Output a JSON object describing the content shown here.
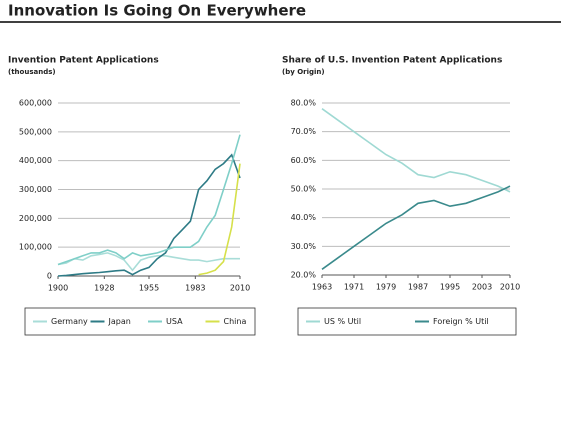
{
  "title": "Innovation Is Going On Everywhere",
  "chart_data": [
    {
      "type": "line",
      "title": "Invention Patent Applications",
      "subtitle": "(thousands)",
      "x": [
        1900,
        1905,
        1910,
        1915,
        1920,
        1925,
        1930,
        1935,
        1940,
        1945,
        1950,
        1955,
        1960,
        1965,
        1970,
        1975,
        1980,
        1985,
        1990,
        1995,
        2000,
        2005,
        2010
      ],
      "series": [
        {
          "name": "Germany",
          "color": "#a9ddd8",
          "values": [
            40000,
            45000,
            60000,
            55000,
            70000,
            75000,
            80000,
            70000,
            55000,
            20000,
            55000,
            65000,
            70000,
            70000,
            65000,
            60000,
            55000,
            55000,
            50000,
            55000,
            60000,
            60000,
            60000
          ]
        },
        {
          "name": "Japan",
          "color": "#2e7b86",
          "values": [
            0,
            2000,
            5000,
            8000,
            10000,
            12000,
            15000,
            18000,
            20000,
            5000,
            20000,
            30000,
            60000,
            80000,
            130000,
            160000,
            190000,
            300000,
            330000,
            370000,
            390000,
            420000,
            340000
          ]
        },
        {
          "name": "USA",
          "color": "#7fcfc8",
          "values": [
            40000,
            50000,
            60000,
            70000,
            80000,
            80000,
            90000,
            80000,
            60000,
            80000,
            70000,
            75000,
            80000,
            90000,
            100000,
            100000,
            100000,
            120000,
            170000,
            210000,
            300000,
            390000,
            490000
          ]
        },
        {
          "name": "China",
          "color": "#d6e04a",
          "values": [
            null,
            null,
            null,
            null,
            null,
            null,
            null,
            null,
            null,
            null,
            null,
            null,
            null,
            null,
            null,
            null,
            null,
            5000,
            10000,
            20000,
            50000,
            170000,
            390000
          ]
        }
      ],
      "xlim": [
        1900,
        2010
      ],
      "xticks": [
        1900,
        1928,
        1955,
        1983,
        2010
      ],
      "ylim": [
        0,
        600000
      ],
      "yticks": [
        0,
        {
          "value": 100000,
          "label": "100,000"
        },
        {
          "value": 200000,
          "label": "200,000"
        },
        {
          "value": 300000,
          "label": "300,000"
        },
        {
          "value": 400000,
          "label": "400,000"
        },
        {
          "value": 500000,
          "label": "500,000"
        },
        {
          "value": 600000,
          "label": "600,000"
        }
      ],
      "grid": true,
      "legend": "bottom"
    },
    {
      "type": "line",
      "title": "Share of U.S. Invention Patent Applications",
      "subtitle": "(by Origin)",
      "x": [
        1963,
        1967,
        1971,
        1975,
        1979,
        1983,
        1987,
        1991,
        1995,
        1999,
        2003,
        2007,
        2010
      ],
      "series": [
        {
          "name": "US % Util",
          "color": "#9fd9d3",
          "values": [
            78,
            74,
            70,
            66,
            62,
            59,
            55,
            54,
            56,
            55,
            53,
            51,
            49
          ]
        },
        {
          "name": "Foreign % Util",
          "color": "#3a8a8c",
          "values": [
            22,
            26,
            30,
            34,
            38,
            41,
            45,
            46,
            44,
            45,
            47,
            49,
            51
          ]
        }
      ],
      "xlim": [
        1963,
        2010
      ],
      "xticks": [
        1963,
        1971,
        1979,
        1987,
        1995,
        2003,
        2010
      ],
      "ylim": [
        20,
        80
      ],
      "yticks": [
        {
          "value": 20,
          "label": "20.0%"
        },
        {
          "value": 30,
          "label": "30.0%"
        },
        {
          "value": 40,
          "label": "40.0%"
        },
        {
          "value": 50,
          "label": "50.0%"
        },
        {
          "value": 60,
          "label": "60.0%"
        },
        {
          "value": 70,
          "label": "70.0%"
        },
        {
          "value": 80,
          "label": "80.0%"
        }
      ],
      "grid": true,
      "legend": "bottom"
    }
  ]
}
